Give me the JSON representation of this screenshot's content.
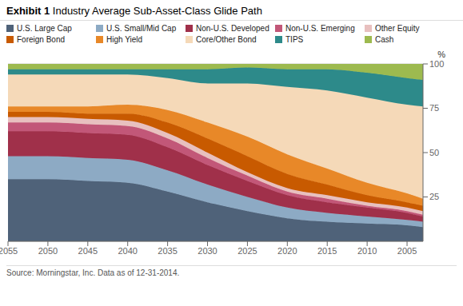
{
  "chart_data": {
    "type": "area",
    "stacked": true,
    "title": "Exhibit 1",
    "subtitle": "Industry Average Sub-Asset-Class Glide Path",
    "annotations": [
      "Source: Morningstar, Inc. Data as of 12-31-2014."
    ],
    "ylabel": "%",
    "x": [
      2055,
      2050,
      2045,
      2040,
      2035,
      2030,
      2025,
      2020,
      2015,
      2010,
      2005,
      2003
    ],
    "series": [
      {
        "name": "U.S. Large Cap",
        "color": "#4f6279",
        "values": [
          35,
          35,
          34,
          33,
          28,
          22,
          17,
          13,
          11,
          10,
          9,
          8
        ]
      },
      {
        "name": "U.S. Small/Mid Cap",
        "color": "#8daac4",
        "values": [
          13,
          13,
          13,
          13,
          12,
          10,
          8,
          6,
          5,
          4,
          3,
          3
        ]
      },
      {
        "name": "Non-U.S. Developed",
        "color": "#a0304a",
        "values": [
          14,
          14,
          14,
          14,
          13,
          11,
          9,
          7,
          6,
          5,
          4,
          3
        ]
      },
      {
        "name": "Non-U.S. Emerging",
        "color": "#c25778",
        "values": [
          5,
          5,
          5,
          5,
          5,
          4,
          3,
          2,
          2,
          1,
          1,
          1
        ]
      },
      {
        "name": "Other Equity",
        "color": "#e8c0bf",
        "values": [
          3,
          3,
          3,
          3,
          3,
          3,
          2,
          2,
          2,
          2,
          2,
          2
        ]
      },
      {
        "name": "Foreign Bond",
        "color": "#c85a00",
        "values": [
          3,
          3,
          3,
          4,
          6,
          8,
          9,
          8,
          6,
          4,
          3,
          3
        ]
      },
      {
        "name": "High Yield",
        "color": "#e88828",
        "values": [
          3,
          3,
          4,
          5,
          7,
          9,
          11,
          11,
          9,
          7,
          5,
          4
        ]
      },
      {
        "name": "Core/Other Bond",
        "color": "#f5d9b8",
        "values": [
          18,
          18,
          18,
          17,
          18,
          22,
          30,
          38,
          44,
          48,
          50,
          52
        ]
      },
      {
        "name": "TIPS",
        "color": "#2d8a8a",
        "values": [
          3,
          3,
          3,
          3,
          5,
          8,
          9,
          10,
          12,
          14,
          15,
          15
        ]
      },
      {
        "name": "Cash",
        "color": "#9dba4f",
        "values": [
          3,
          3,
          3,
          3,
          3,
          3,
          2,
          3,
          3,
          5,
          8,
          9
        ]
      }
    ],
    "xlim": [
      2055,
      2003
    ],
    "xticks": [
      2055,
      2050,
      2045,
      2040,
      2035,
      2030,
      2025,
      2020,
      2015,
      2010,
      2005
    ],
    "ylim": [
      0,
      100
    ],
    "yticks": [
      25,
      50,
      75,
      100
    ],
    "grid": true,
    "legend": "top"
  }
}
